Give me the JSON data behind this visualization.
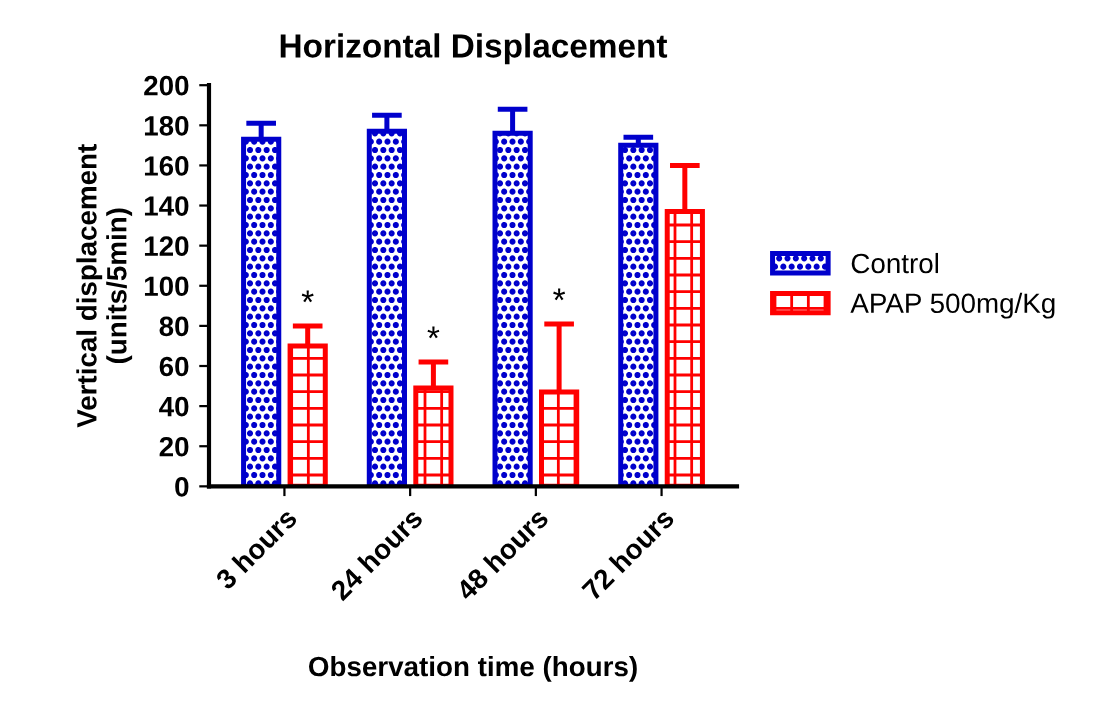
{
  "chart_data": {
    "type": "bar",
    "title": "Horizontal Displacement",
    "xlabel": "Observation time (hours)",
    "ylabel": "Vertical displacement\n(units/5min)",
    "categories": [
      "3 hours",
      "24 hours",
      "48 hours",
      "72 hours"
    ],
    "series": [
      {
        "name": "Control",
        "color": "#0000cc",
        "values": [
          173,
          177,
          176,
          170
        ],
        "errors": [
          [
            173,
            181
          ],
          [
            177,
            185
          ],
          [
            176,
            188
          ],
          [
            170,
            174
          ]
        ]
      },
      {
        "name": "APAP 500mg/Kg",
        "color": "#ff0000",
        "values": [
          70,
          49,
          47,
          137
        ],
        "errors": [
          [
            70,
            80
          ],
          [
            49,
            62
          ],
          [
            47,
            81
          ],
          [
            137,
            160
          ]
        ]
      }
    ],
    "annotations": [
      {
        "text": "*",
        "x": "3 hours",
        "y": 80
      },
      {
        "text": "*",
        "x": "24 hours",
        "y": 62
      },
      {
        "text": "*",
        "x": "48 hours",
        "y": 81
      }
    ],
    "ylim": [
      0,
      200
    ],
    "yticks": [
      0,
      20,
      40,
      60,
      80,
      100,
      120,
      140,
      160,
      180,
      200
    ],
    "grid": false,
    "legend": "right"
  }
}
